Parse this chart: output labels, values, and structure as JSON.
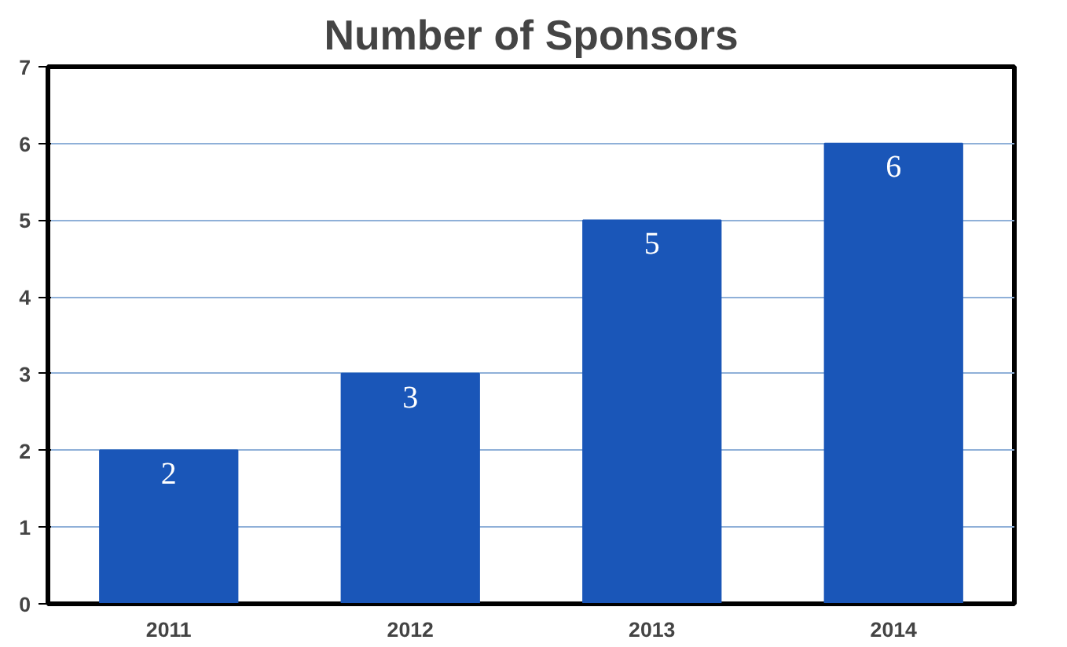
{
  "chart_data": {
    "type": "bar",
    "title": "Number of Sponsors",
    "categories": [
      "2011",
      "2012",
      "2013",
      "2014"
    ],
    "values": [
      2,
      3,
      5,
      6
    ],
    "color": "#1a56b8",
    "ylim": [
      0,
      7
    ],
    "yticks": [
      0,
      1,
      2,
      3,
      4,
      5,
      6,
      7
    ],
    "grid": "y",
    "data_labels": true
  }
}
